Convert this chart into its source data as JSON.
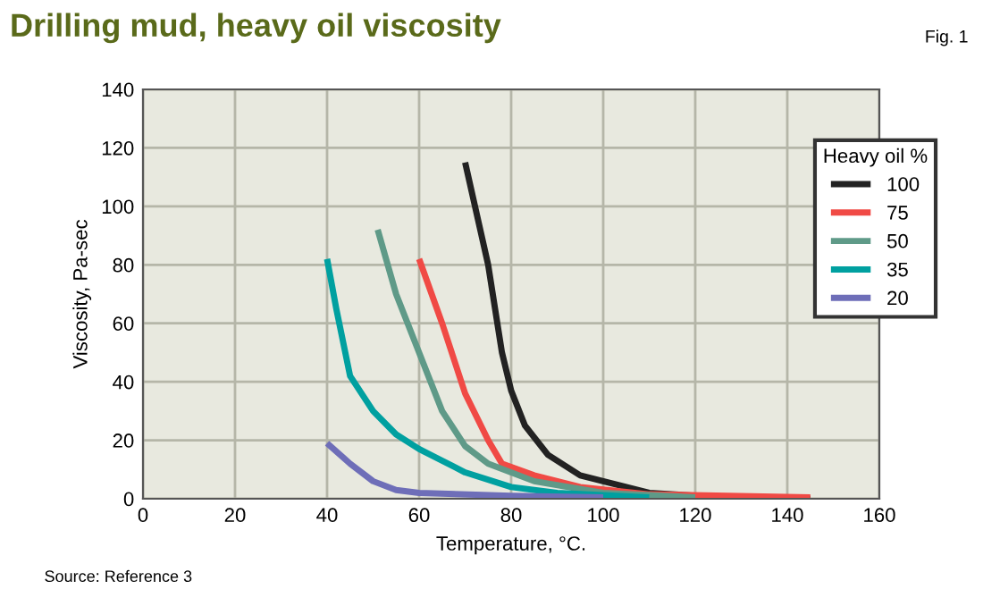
{
  "chart_data": {
    "type": "line",
    "title": "Drilling mud, heavy oil viscosity",
    "xlabel": "Temperature, °C.",
    "ylabel": "Viscosity, Pa-sec",
    "legend_title": "Heavy oil %",
    "annotations": [
      "Fig. 1",
      "Source: Reference 3"
    ],
    "xlim": [
      0,
      160
    ],
    "xticks": [
      0,
      20,
      40,
      60,
      80,
      100,
      120,
      140,
      160
    ],
    "ylim": [
      0,
      140
    ],
    "yticks": [
      0,
      20,
      40,
      60,
      80,
      100,
      120,
      140
    ],
    "grid": true,
    "legend": "right",
    "marker": "none",
    "line_style": "solid",
    "series": [
      {
        "name": "100",
        "color": "#222222",
        "x": [
          70,
          75,
          78,
          80,
          83,
          88,
          95,
          100,
          110,
          120,
          145
        ],
        "values": [
          115,
          80,
          50,
          37,
          25,
          15,
          8,
          6,
          2,
          1,
          0
        ]
      },
      {
        "name": "75",
        "color": "#f04a45",
        "x": [
          60,
          65,
          70,
          75,
          78,
          85,
          95,
          110,
          145
        ],
        "values": [
          82,
          60,
          36,
          20,
          12,
          8,
          4,
          1.5,
          0.5
        ]
      },
      {
        "name": "50",
        "color": "#5f9a88",
        "x": [
          51,
          55,
          60,
          65,
          70,
          75,
          85,
          100,
          120
        ],
        "values": [
          92,
          70,
          50,
          30,
          18,
          12,
          6,
          2,
          0.5
        ]
      },
      {
        "name": "35",
        "color": "#00a0a0",
        "x": [
          40,
          42,
          45,
          50,
          55,
          60,
          70,
          80,
          90,
          110
        ],
        "values": [
          82,
          65,
          42,
          30,
          22,
          17,
          9,
          4,
          2,
          0.5
        ]
      },
      {
        "name": "20",
        "color": "#6e6eb8",
        "x": [
          40,
          45,
          50,
          55,
          60,
          80,
          100
        ],
        "values": [
          19,
          12,
          6,
          3,
          2,
          1,
          0.5
        ]
      }
    ]
  }
}
